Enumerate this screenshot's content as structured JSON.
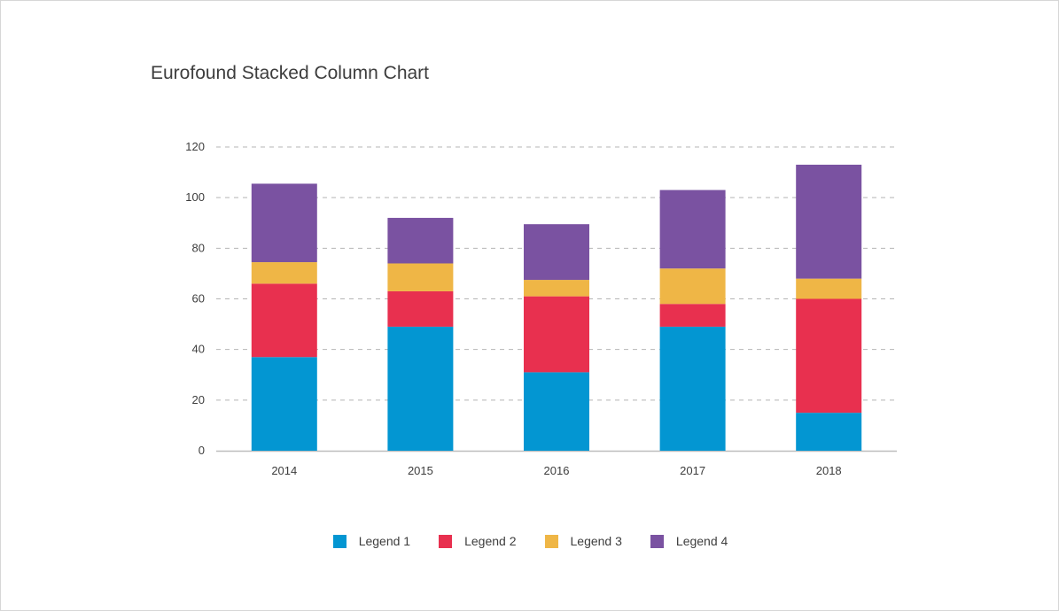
{
  "chart_data": {
    "type": "bar",
    "stacked": true,
    "title": "Eurofound Stacked Column Chart",
    "categories": [
      "2014",
      "2015",
      "2016",
      "2017",
      "2018"
    ],
    "series": [
      {
        "name": "Legend 1",
        "color": "#0396d2",
        "values": [
          37,
          49,
          31,
          49,
          15
        ]
      },
      {
        "name": "Legend 2",
        "color": "#e8304f",
        "values": [
          29,
          14,
          30,
          9,
          45
        ]
      },
      {
        "name": "Legend 3",
        "color": "#efb646",
        "values": [
          8.5,
          11,
          6.5,
          14,
          8
        ]
      },
      {
        "name": "Legend 4",
        "color": "#7a52a1",
        "values": [
          31,
          18,
          22,
          31,
          45
        ]
      }
    ],
    "ylim": [
      0,
      120
    ],
    "yticks": [
      "0",
      "20",
      "40",
      "60",
      "80",
      "100",
      "120"
    ],
    "grid": true,
    "legend_position": "bottom"
  }
}
